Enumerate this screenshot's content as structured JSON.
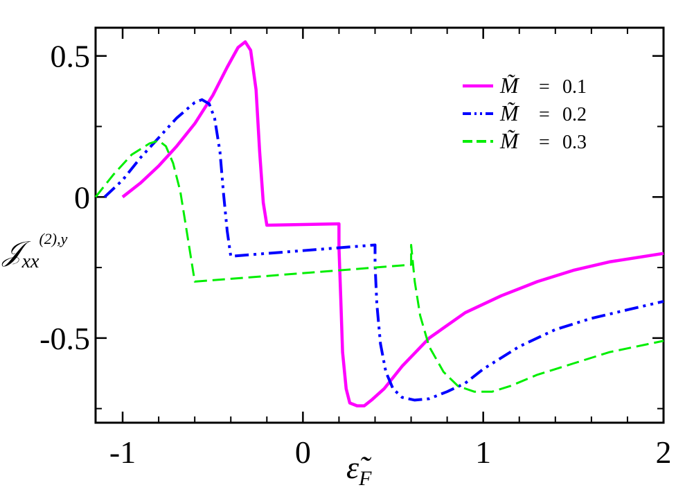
{
  "chart_data": {
    "type": "line",
    "xlabel": "ε̃F",
    "ylabel": "𝒥xx(2),y",
    "xlim": [
      -1.15,
      2.0
    ],
    "ylim": [
      -0.8,
      0.6
    ],
    "grid": false,
    "legend_position": "top-right",
    "x_ticks": [
      -1,
      0,
      1,
      2
    ],
    "x_tick_labels": [
      "-1",
      "0",
      "1",
      "2"
    ],
    "y_ticks": [
      0.5,
      0,
      -0.5
    ],
    "y_tick_labels": [
      "0.5",
      "0",
      "-0.5"
    ],
    "legend_symbol": "M̃",
    "series": [
      {
        "name": "0.1",
        "color": "#ff00ff",
        "style": "solid",
        "x": [
          -1.0,
          -0.9,
          -0.8,
          -0.7,
          -0.6,
          -0.5,
          -0.42,
          -0.36,
          -0.32,
          -0.29,
          -0.26,
          -0.24,
          -0.22,
          -0.2,
          -0.2,
          0.2,
          0.2,
          0.21,
          0.22,
          0.24,
          0.26,
          0.3,
          0.34,
          0.38,
          0.45,
          0.55,
          0.7,
          0.9,
          1.1,
          1.3,
          1.5,
          1.7,
          2.0
        ],
        "y": [
          0.0,
          0.05,
          0.11,
          0.18,
          0.26,
          0.36,
          0.46,
          0.53,
          0.55,
          0.52,
          0.38,
          0.16,
          -0.02,
          -0.1,
          -0.1,
          -0.095,
          -0.18,
          -0.36,
          -0.55,
          -0.68,
          -0.73,
          -0.74,
          -0.74,
          -0.72,
          -0.68,
          -0.6,
          -0.5,
          -0.41,
          -0.35,
          -0.3,
          -0.26,
          -0.23,
          -0.2
        ]
      },
      {
        "name": "0.2",
        "color": "#0000ff",
        "style": "dashdotdot",
        "x": [
          -1.1,
          -1.0,
          -0.9,
          -0.8,
          -0.7,
          -0.6,
          -0.56,
          -0.52,
          -0.49,
          -0.46,
          -0.44,
          -0.42,
          -0.4,
          -0.4,
          0.4,
          0.4,
          0.41,
          0.43,
          0.46,
          0.5,
          0.55,
          0.62,
          0.7,
          0.8,
          0.9,
          1.0,
          1.2,
          1.4,
          1.6,
          1.8,
          2.0
        ],
        "y": [
          0.0,
          0.06,
          0.14,
          0.21,
          0.28,
          0.335,
          0.345,
          0.33,
          0.28,
          0.16,
          0.01,
          -0.12,
          -0.21,
          -0.21,
          -0.17,
          -0.24,
          -0.38,
          -0.52,
          -0.62,
          -0.68,
          -0.71,
          -0.72,
          -0.715,
          -0.69,
          -0.66,
          -0.61,
          -0.53,
          -0.47,
          -0.43,
          -0.4,
          -0.37
        ]
      },
      {
        "name": "0.3",
        "color": "#00ee00",
        "style": "dashed",
        "x": [
          -1.15,
          -1.05,
          -0.95,
          -0.85,
          -0.8,
          -0.76,
          -0.72,
          -0.68,
          -0.65,
          -0.62,
          -0.6,
          -0.6,
          0.6,
          0.6,
          0.62,
          0.65,
          0.7,
          0.78,
          0.86,
          0.95,
          1.05,
          1.15,
          1.3,
          1.5,
          1.7,
          2.0
        ],
        "y": [
          0.0,
          0.08,
          0.15,
          0.19,
          0.2,
          0.18,
          0.12,
          0.02,
          -0.1,
          -0.22,
          -0.3,
          -0.3,
          -0.24,
          -0.17,
          -0.3,
          -0.42,
          -0.53,
          -0.62,
          -0.67,
          -0.69,
          -0.69,
          -0.67,
          -0.63,
          -0.59,
          -0.55,
          -0.51
        ]
      }
    ]
  }
}
